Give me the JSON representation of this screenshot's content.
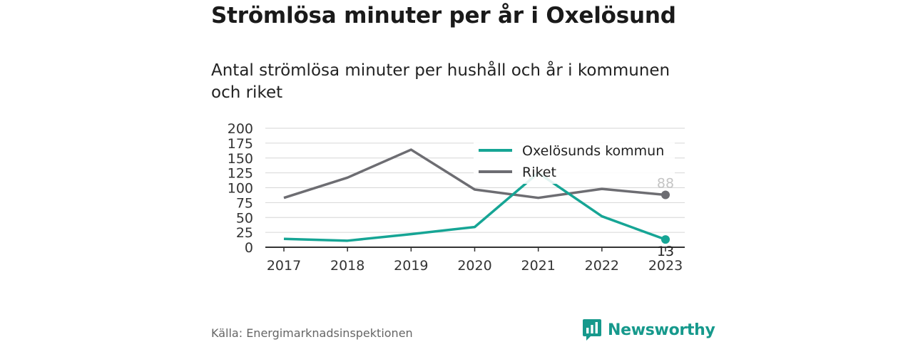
{
  "title": "Strömlösa minuter per år i Oxelösund",
  "subtitle": "Antal strömlösa minuter per hushåll och år i kommunen och riket",
  "source": "Källa: Energimarknadsinspektionen",
  "brand": {
    "name": "Newsworthy",
    "icon": "newsworthy-logo-icon",
    "color": "#16998c"
  },
  "chart_data": {
    "type": "line",
    "x": [
      "2017",
      "2018",
      "2019",
      "2020",
      "2021",
      "2022",
      "2023"
    ],
    "ylim": [
      0,
      200
    ],
    "yticks": [
      0,
      25,
      50,
      75,
      100,
      125,
      150,
      175,
      200
    ],
    "grid": true,
    "legend": "top-right",
    "series": [
      {
        "name": "Oxelösunds kommun",
        "color": "#16a595",
        "values": [
          14,
          11,
          22,
          34,
          125,
          52,
          13
        ],
        "end_label": "13"
      },
      {
        "name": "Riket",
        "color": "#6d6d72",
        "values": [
          83,
          117,
          164,
          97,
          83,
          98,
          88
        ],
        "end_label": "88"
      }
    ]
  }
}
